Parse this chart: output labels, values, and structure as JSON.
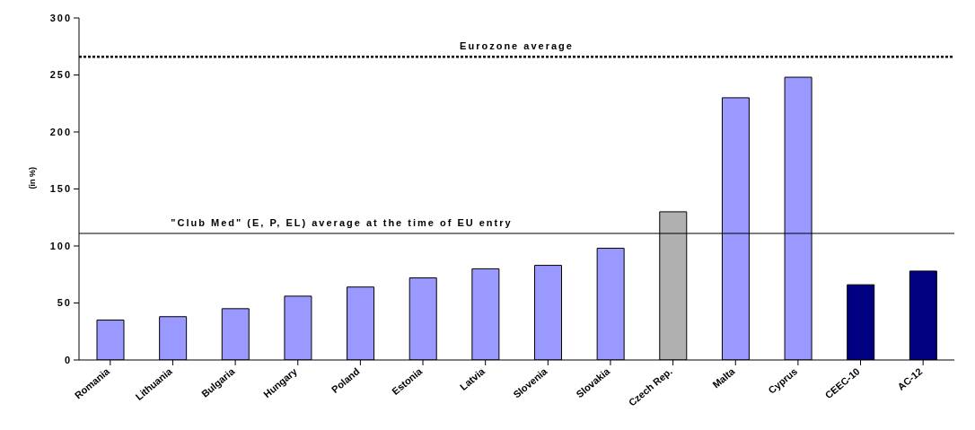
{
  "chart_data": {
    "type": "bar",
    "ylabel": "(in %)",
    "categories": [
      "Romania",
      "Lithuania",
      "Bulgaria",
      "Hungary",
      "Poland",
      "Estonia",
      "Latvia",
      "Slovenia",
      "Slovakia",
      "Czech Rep.",
      "Malta",
      "Cyprus",
      "CEEC-10",
      "AC-12"
    ],
    "values": [
      35,
      38,
      45,
      56,
      64,
      72,
      80,
      83,
      98,
      130,
      230,
      248,
      66,
      78
    ],
    "colors": [
      "#9999ff",
      "#9999ff",
      "#9999ff",
      "#9999ff",
      "#9999ff",
      "#9999ff",
      "#9999ff",
      "#9999ff",
      "#9999ff",
      "#b0b0b0",
      "#9999ff",
      "#9999ff",
      "#000080",
      "#000080"
    ],
    "ylim": [
      0,
      300
    ],
    "yticks": [
      0,
      50,
      100,
      150,
      200,
      250,
      300
    ],
    "ref_lines": [
      {
        "axis": "y",
        "value": 266,
        "label": "Eurozone average",
        "color": "#000000",
        "line_style": "dotted"
      },
      {
        "axis": "y",
        "value": 111,
        "label": "\"Club Med\" (E, P, EL) average at the time of EU entry",
        "color": "#000000",
        "line_style": "solid"
      }
    ],
    "grid": false,
    "legend": false
  }
}
